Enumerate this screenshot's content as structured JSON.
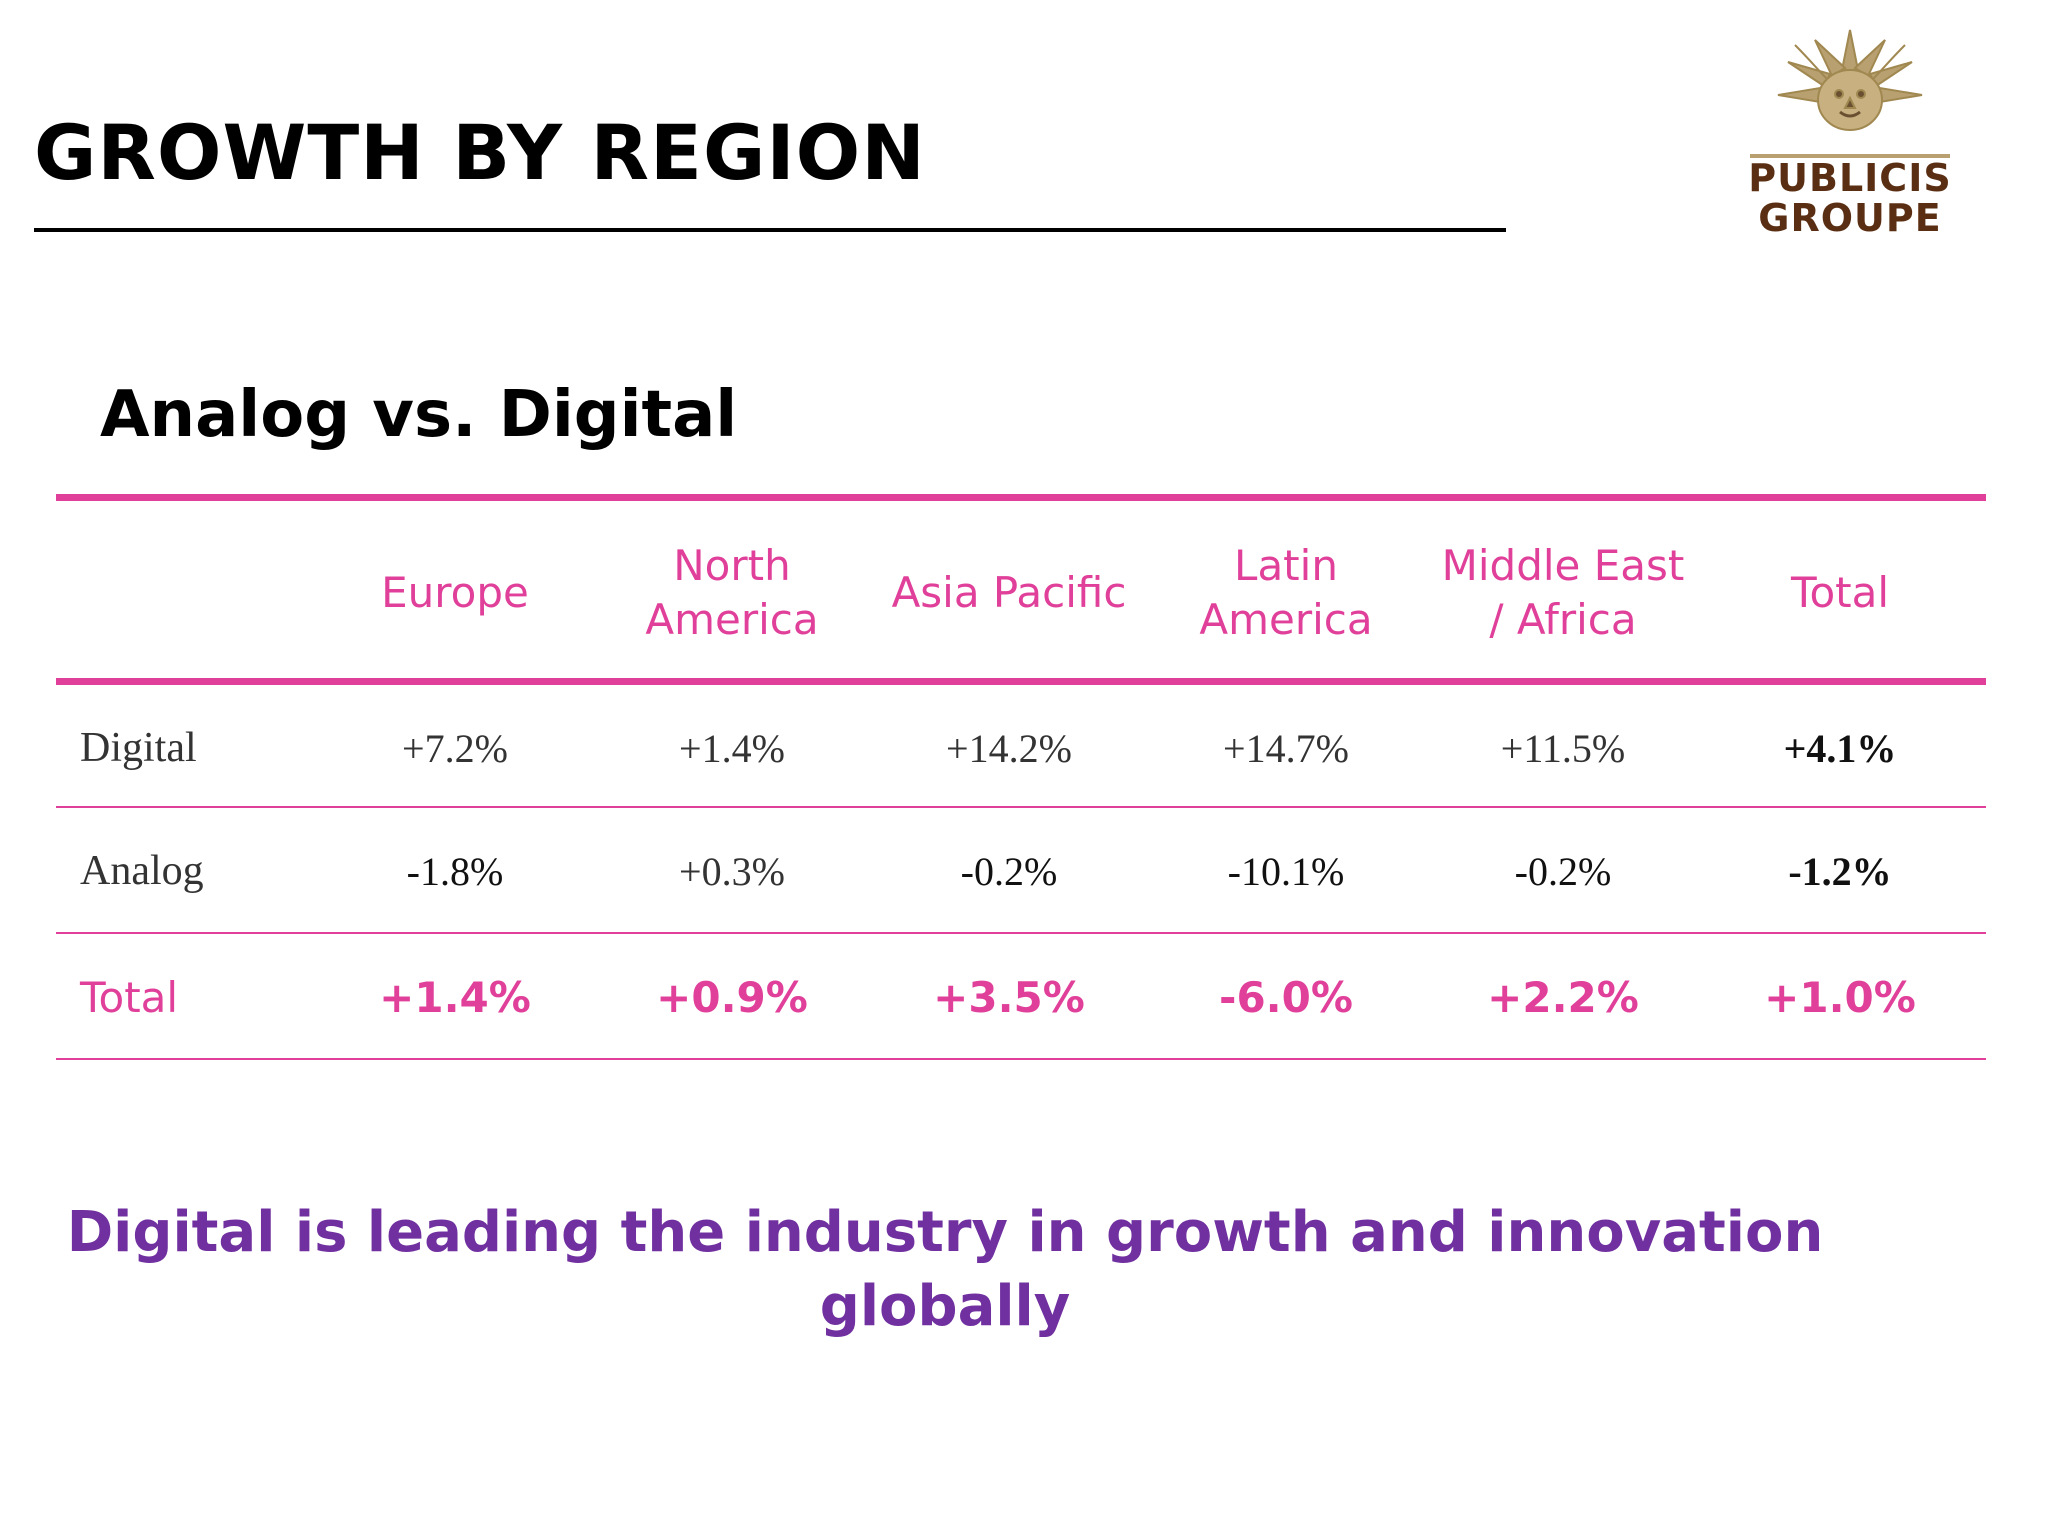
{
  "slide": {
    "title": "GROWTH BY REGION",
    "subtitle": "Analog vs. Digital",
    "tagline": "Digital is leading the industry in growth and innovation globally"
  },
  "logo": {
    "line1": "PUBLICIS",
    "line2": "GROUPE",
    "icon": "lion-sun-icon",
    "color": "#5a2e12",
    "emblem_color": "#b8a070"
  },
  "colors": {
    "accent": "#e0409a",
    "tagline": "#7030a0"
  },
  "table": {
    "headers": [
      "Europe",
      "North America",
      "Asia Pacific",
      "Latin America",
      "Middle East / Africa",
      "Total"
    ],
    "rows": [
      {
        "label": "Digital",
        "values": [
          "+7.2%",
          "+1.4%",
          "+14.2%",
          "+14.7%",
          "+11.5%",
          "+4.1%"
        ]
      },
      {
        "label": "Analog",
        "values": [
          "-1.8%",
          "+0.3%",
          "-0.2%",
          "-10.1%",
          "-0.2%",
          "-1.2%"
        ]
      },
      {
        "label": "Total",
        "values": [
          "+1.4%",
          "+0.9%",
          "+3.5%",
          "-6.0%",
          "+2.2%",
          "+1.0%"
        ]
      }
    ]
  }
}
